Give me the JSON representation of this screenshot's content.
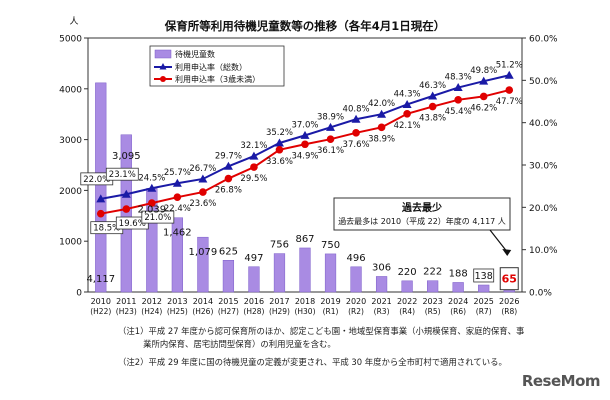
{
  "chart_data": {
    "type": "bar",
    "title": "保育所等利用待機児童数等の推移（各年4月1日現在）",
    "left_axis_unit": "人",
    "ylim_left": [
      0,
      5000
    ],
    "yticks_left": [
      "0",
      "1000",
      "2000",
      "3000",
      "4000",
      "5000"
    ],
    "ylim_right": [
      0,
      60
    ],
    "yticks_right": [
      "0.0%",
      "10.0%",
      "20.0%",
      "30.0%",
      "40.0%",
      "50.0%",
      "60.0%"
    ],
    "categories": [
      "2010",
      "2011",
      "2012",
      "2013",
      "2014",
      "2015",
      "2016",
      "2017",
      "2018",
      "2019",
      "2020",
      "2021",
      "2022",
      "2023",
      "2024",
      "2025",
      "2026"
    ],
    "category_sublabels": [
      "(H22)",
      "(H23)",
      "(H24)",
      "(H25)",
      "(H26)",
      "(H27)",
      "(H28)",
      "(H29)",
      "(H30)",
      "(R1)",
      "(R2)",
      "(R3)",
      "(R4)",
      "(R5)",
      "(R6)",
      "(R7)",
      "(R8)"
    ],
    "series": [
      {
        "name": "待機児童数",
        "kind": "bar",
        "color": "#a98be3",
        "values": [
          4117,
          3095,
          2039,
          1462,
          1079,
          625,
          497,
          756,
          867,
          750,
          496,
          306,
          220,
          222,
          188,
          138,
          65
        ],
        "labels": [
          "4,117",
          "3,095",
          "2,039",
          "1,462",
          "1,079",
          "625",
          "497",
          "756",
          "867",
          "750",
          "496",
          "306",
          "220",
          "222",
          "188",
          "138",
          "65"
        ]
      },
      {
        "name": "利用申込率（総数）",
        "kind": "line",
        "color": "#1a1aa6",
        "values": [
          22.0,
          23.1,
          24.5,
          25.7,
          26.7,
          29.7,
          32.1,
          35.2,
          37.0,
          38.9,
          40.8,
          42.0,
          44.3,
          46.3,
          48.3,
          49.8,
          51.2
        ],
        "labels": [
          "22.0%",
          "23.1%",
          "24.5%",
          "25.7%",
          "26.7%",
          "29.7%",
          "32.1%",
          "35.2%",
          "37.0%",
          "38.9%",
          "40.8%",
          "42.0%",
          "44.3%",
          "46.3%",
          "48.3%",
          "49.8%",
          "51.2%"
        ]
      },
      {
        "name": "利用申込率（3歳未満）",
        "kind": "line",
        "color": "#e00000",
        "values": [
          18.5,
          19.6,
          21.0,
          22.4,
          23.6,
          26.8,
          29.5,
          33.6,
          34.9,
          36.1,
          37.6,
          38.9,
          42.1,
          43.8,
          45.4,
          46.2,
          47.7
        ],
        "labels": [
          "18.5%",
          "19.6%",
          "21.0%",
          "22.4%",
          "23.6%",
          "26.8%",
          "29.5%",
          "33.6%",
          "34.9%",
          "36.1%",
          "37.6%",
          "38.9%",
          "42.1%",
          "43.8%",
          "45.4%",
          "46.2%",
          "47.7%"
        ]
      }
    ],
    "legend_position": "top-left",
    "grid": false,
    "callout": {
      "title": "過去最少",
      "text": "過去最多は 2010（平成 22）年度の 4,117 人"
    }
  },
  "notes": {
    "note1": "（注1）平成 27 年度から認可保育所のほか、認定こども園・地域型保育事業（小規模保育、家庭的保育、事\n　　　業所内保育、居宅訪問型保育）の利用児童を含む。",
    "note2": "（注2）平成 29 年度に国の待機児童の定義が変更され、平成 30 年度から全市町村で適用されている。"
  },
  "watermark": "ReseMom"
}
